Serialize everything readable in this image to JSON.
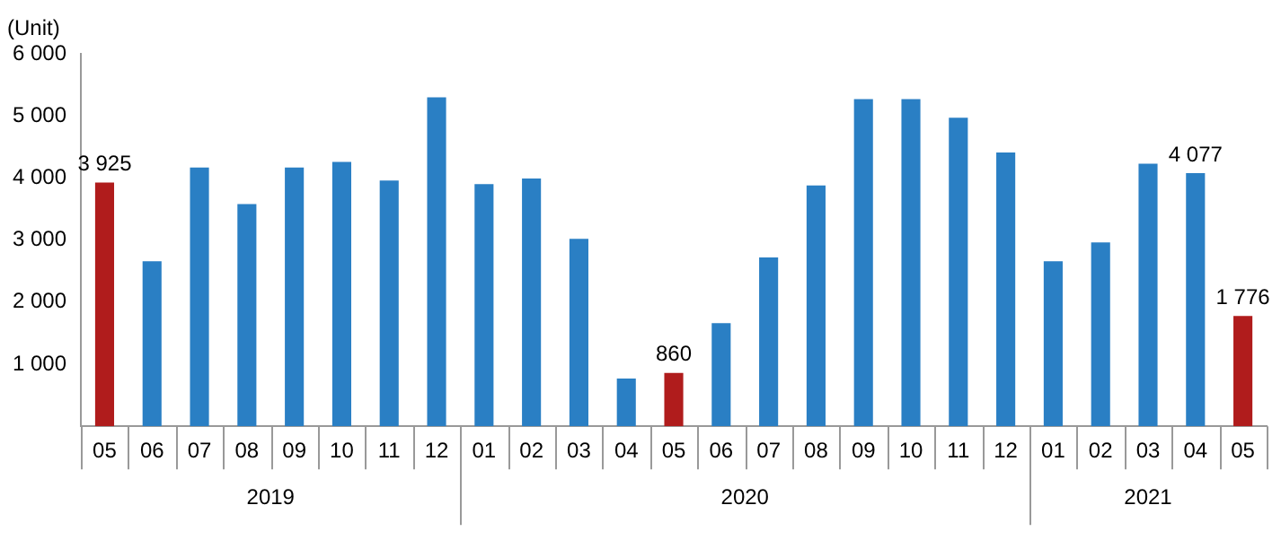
{
  "chart_data": {
    "type": "bar",
    "ylabel": "(Unit)",
    "categories": [
      "05",
      "06",
      "07",
      "08",
      "09",
      "10",
      "11",
      "12",
      "01",
      "02",
      "03",
      "04",
      "05",
      "06",
      "07",
      "08",
      "09",
      "10",
      "11",
      "12",
      "01",
      "02",
      "03",
      "04",
      "05"
    ],
    "values": [
      3925,
      2660,
      4170,
      3580,
      4170,
      4260,
      3960,
      5300,
      3900,
      3990,
      3020,
      770,
      860,
      1660,
      2720,
      3880,
      5270,
      5270,
      4970,
      4410,
      2660,
      2960,
      4230,
      4077,
      1776
    ],
    "colors": [
      "#b01c1c",
      "#2a7fc4",
      "#2a7fc4",
      "#2a7fc4",
      "#2a7fc4",
      "#2a7fc4",
      "#2a7fc4",
      "#2a7fc4",
      "#2a7fc4",
      "#2a7fc4",
      "#2a7fc4",
      "#2a7fc4",
      "#b01c1c",
      "#2a7fc4",
      "#2a7fc4",
      "#2a7fc4",
      "#2a7fc4",
      "#2a7fc4",
      "#2a7fc4",
      "#2a7fc4",
      "#2a7fc4",
      "#2a7fc4",
      "#2a7fc4",
      "#2a7fc4",
      "#b01c1c"
    ],
    "value_labels": [
      "3 925",
      null,
      null,
      null,
      null,
      null,
      null,
      null,
      null,
      null,
      null,
      null,
      "860",
      null,
      null,
      null,
      null,
      null,
      null,
      null,
      null,
      null,
      null,
      "4 077",
      "1 776"
    ],
    "annotations": [
      "2019",
      "2020",
      "2021"
    ],
    "ylim": [
      0,
      6000
    ],
    "yticks": [
      {
        "value": 0,
        "label": null
      },
      {
        "value": 1000,
        "label": "1 000"
      },
      {
        "value": 2000,
        "label": "2 000"
      },
      {
        "value": 3000,
        "label": "3 000"
      },
      {
        "value": 4000,
        "label": "4 000"
      },
      {
        "value": 5000,
        "label": "5 000"
      },
      {
        "value": 6000,
        "label": "6 000"
      }
    ],
    "grid": false,
    "legend": false
  }
}
